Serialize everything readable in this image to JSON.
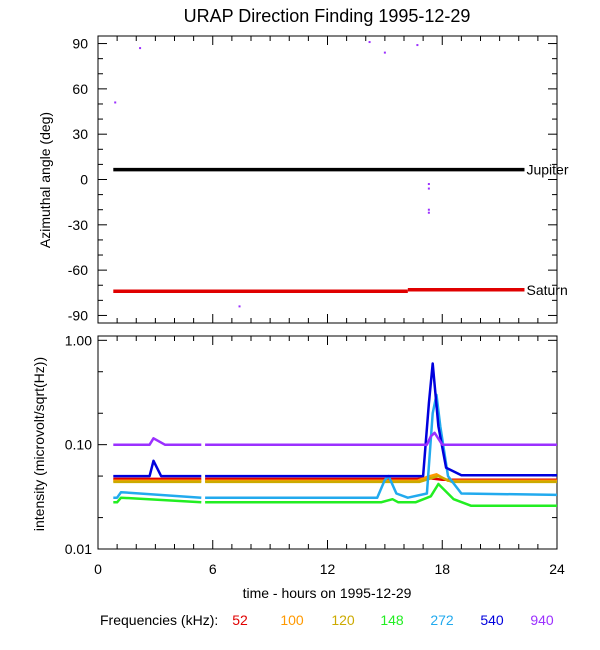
{
  "chart_data": [
    {
      "type": "scatter",
      "title": "URAP Direction Finding  1995-12-29",
      "xlabel": "",
      "ylabel": "Azimuthal angle (deg)",
      "xlim": [
        0,
        24
      ],
      "ylim": [
        -95,
        95
      ],
      "yticks": [
        90,
        60,
        30,
        0,
        -30,
        -60,
        -90
      ],
      "grid": false,
      "reference_lines": [
        {
          "name": "Jupiter",
          "color": "#000000",
          "segments": [
            [
              0.8,
              6.5,
              22.3,
              6.5
            ]
          ]
        },
        {
          "name": "Saturn",
          "color": "#e00000",
          "segments": [
            [
              0.8,
              -74,
              16.2,
              -74
            ],
            [
              16.2,
              -73,
              22.3,
              -73
            ]
          ]
        }
      ],
      "scatter_points": [
        {
          "x": 0.9,
          "y": 51,
          "color": "#9b30ff"
        },
        {
          "x": 2.2,
          "y": 87,
          "color": "#9b30ff"
        },
        {
          "x": 7.4,
          "y": -84,
          "color": "#9b30ff"
        },
        {
          "x": 14.2,
          "y": 91,
          "color": "#9b30ff"
        },
        {
          "x": 15.0,
          "y": 84,
          "color": "#9b30ff"
        },
        {
          "x": 16.7,
          "y": 89,
          "color": "#9b30ff"
        },
        {
          "x": 17.3,
          "y": -3,
          "color": "#9b30ff"
        },
        {
          "x": 17.3,
          "y": -6,
          "color": "#9b30ff"
        },
        {
          "x": 17.3,
          "y": -20,
          "color": "#9b30ff"
        },
        {
          "x": 17.3,
          "y": -22,
          "color": "#9b30ff"
        }
      ]
    },
    {
      "type": "line",
      "xlabel": "time - hours on 1995-12-29",
      "ylabel": "intensity (microvolt/sqrt(Hz))",
      "xlim": [
        0,
        24
      ],
      "ylim": [
        0.01,
        1.1
      ],
      "yscale": "log",
      "yticks": [
        1.0,
        0.1,
        0.01
      ],
      "ytick_labels": [
        "1.00",
        "0.10",
        "0.01"
      ],
      "xticks": [
        0,
        6,
        12,
        18,
        24
      ],
      "grid": false,
      "legend_title": "Frequencies (kHz):",
      "legend_placement": "bottom",
      "series": [
        {
          "name": "52",
          "color": "#e00000",
          "x": [
            0.8,
            5.4,
            5.6,
            16.7,
            17.2,
            18.0,
            24.0
          ],
          "y": [
            0.047,
            0.047,
            0.047,
            0.047,
            0.048,
            0.046,
            0.046
          ]
        },
        {
          "name": "100",
          "color": "#ff9900",
          "x": [
            0.8,
            5.4,
            5.6,
            16.7,
            17.2,
            17.7,
            18.3,
            24.0
          ],
          "y": [
            0.045,
            0.045,
            0.045,
            0.045,
            0.049,
            0.052,
            0.045,
            0.045
          ]
        },
        {
          "name": "120",
          "color": "#ccaa00",
          "x": [
            0.8,
            5.4,
            5.6,
            16.8,
            17.3,
            17.8,
            18.5,
            24.0
          ],
          "y": [
            0.044,
            0.044,
            0.044,
            0.044,
            0.047,
            0.05,
            0.044,
            0.044
          ]
        },
        {
          "name": "148",
          "color": "#22ee22",
          "x": [
            0.8,
            1.0,
            1.2,
            5.4,
            5.6,
            14.8,
            15.4,
            15.7,
            16.6,
            17.4,
            17.8,
            18.6,
            19.5,
            24.0
          ],
          "y": [
            0.028,
            0.028,
            0.031,
            0.028,
            0.028,
            0.028,
            0.03,
            0.028,
            0.028,
            0.032,
            0.042,
            0.03,
            0.026,
            0.026
          ]
        },
        {
          "name": "272",
          "color": "#22aaee",
          "x": [
            0.8,
            1.0,
            1.2,
            5.4,
            5.6,
            14.6,
            15.0,
            15.2,
            15.6,
            16.2,
            17.2,
            17.5,
            17.7,
            17.9,
            18.3,
            19.0,
            24.0
          ],
          "y": [
            0.031,
            0.031,
            0.035,
            0.031,
            0.031,
            0.031,
            0.046,
            0.05,
            0.034,
            0.031,
            0.034,
            0.2,
            0.3,
            0.15,
            0.05,
            0.034,
            0.033
          ]
        },
        {
          "name": "540",
          "color": "#0000dd",
          "x": [
            0.8,
            2.7,
            2.9,
            3.3,
            5.4,
            5.6,
            17.0,
            17.3,
            17.5,
            17.8,
            18.2,
            19.0,
            24.0
          ],
          "y": [
            0.05,
            0.05,
            0.07,
            0.05,
            0.05,
            0.05,
            0.05,
            0.25,
            0.6,
            0.15,
            0.06,
            0.051,
            0.051
          ]
        },
        {
          "name": "940",
          "color": "#9b30ff",
          "x": [
            0.8,
            2.7,
            2.9,
            3.5,
            5.4,
            5.6,
            17.2,
            17.4,
            17.6,
            18.0,
            24.0
          ],
          "y": [
            0.1,
            0.1,
            0.115,
            0.1,
            0.1,
            0.1,
            0.1,
            0.12,
            0.13,
            0.1,
            0.1
          ]
        }
      ]
    }
  ]
}
